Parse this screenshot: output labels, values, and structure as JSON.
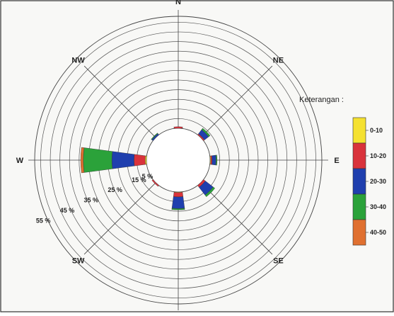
{
  "chart_data": {
    "type": "wind-rose",
    "directions": [
      "N",
      "NE",
      "E",
      "SE",
      "S",
      "SW",
      "W",
      "NW"
    ],
    "radial_ticks": [
      5,
      15,
      25,
      35,
      45,
      55
    ],
    "radial_tick_labels": [
      "5 %",
      "15 %",
      "25 %",
      "35 %",
      "45 %",
      "55 %"
    ],
    "rmax": 55,
    "calm_radius_pct": 12,
    "ring_step_pct": 3.7,
    "legend": {
      "title": "Keterangan :",
      "classes": [
        {
          "label": "0-10",
          "color": "#f5e130"
        },
        {
          "label": "10-20",
          "color": "#d9333b"
        },
        {
          "label": "20-30",
          "color": "#1f3fae"
        },
        {
          "label": "30-40",
          "color": "#2ba23a"
        },
        {
          "label": "40-50",
          "color": "#e07030"
        }
      ]
    },
    "series": [
      {
        "name": "0-10",
        "values": [
          0,
          0,
          0.3,
          0,
          0.2,
          0,
          0.5,
          0
        ]
      },
      {
        "name": "10-20",
        "values": [
          0.6,
          0.5,
          0.5,
          0.9,
          1.7,
          0.5,
          4.3,
          0
        ]
      },
      {
        "name": "20-30",
        "values": [
          0,
          2.0,
          1.5,
          3.8,
          4.5,
          0,
          8.5,
          0.6
        ]
      },
      {
        "name": "30-40",
        "values": [
          0,
          0.7,
          0.4,
          0.8,
          0.5,
          0,
          11.0,
          0.3
        ]
      },
      {
        "name": "40-50",
        "values": [
          0,
          0,
          0,
          0,
          0,
          0,
          1.0,
          0
        ]
      }
    ]
  }
}
